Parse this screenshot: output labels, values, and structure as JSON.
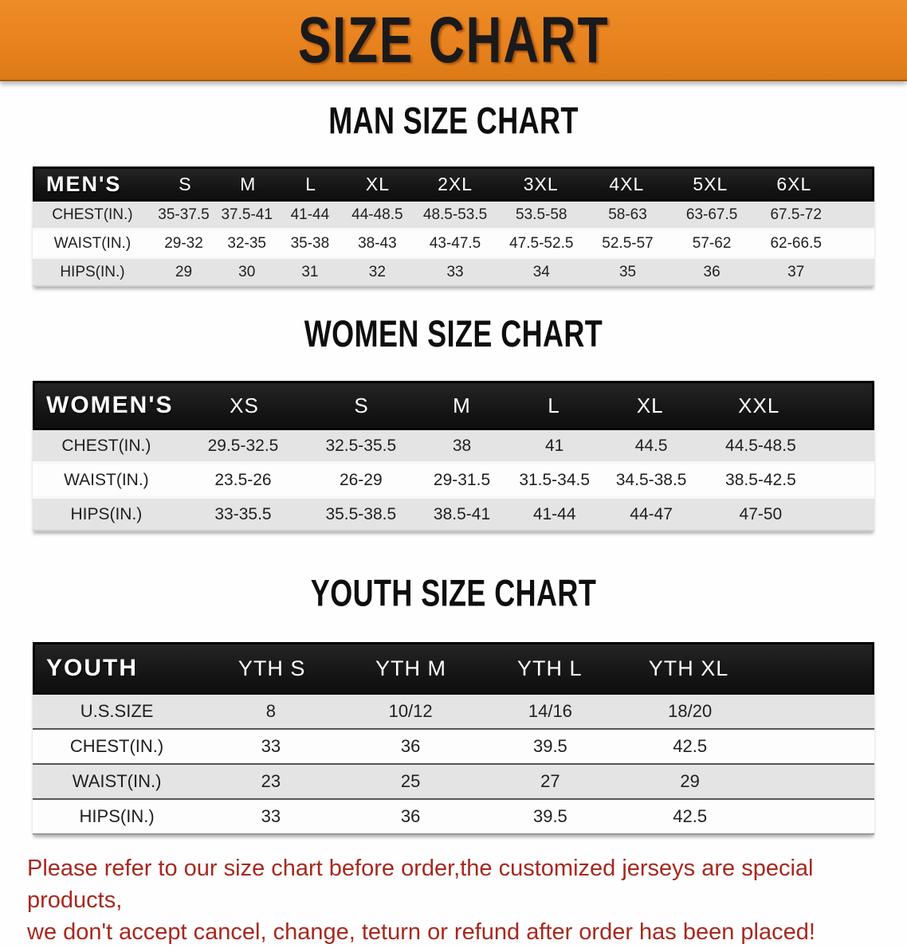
{
  "banner": {
    "title": "SIZE CHART"
  },
  "men": {
    "heading": "MAN SIZE CHART",
    "header_label": "MEN'S",
    "columns": [
      "S",
      "M",
      "L",
      "XL",
      "2XL",
      "3XL",
      "4XL",
      "5XL",
      "6XL"
    ],
    "rows": [
      {
        "label": "CHEST(IN.)",
        "values": [
          "35-37.5",
          "37.5-41",
          "41-44",
          "44-48.5",
          "48.5-53.5",
          "53.5-58",
          "58-63",
          "63-67.5",
          "67.5-72"
        ]
      },
      {
        "label": "WAIST(IN.)",
        "values": [
          "29-32",
          "32-35",
          "35-38",
          "38-43",
          "43-47.5",
          "47.5-52.5",
          "52.5-57",
          "57-62",
          "62-66.5"
        ]
      },
      {
        "label": "HIPS(IN.)",
        "values": [
          "29",
          "30",
          "31",
          "32",
          "33",
          "34",
          "35",
          "36",
          "37"
        ]
      }
    ]
  },
  "women": {
    "heading": "WOMEN SIZE CHART",
    "header_label": "WOMEN'S",
    "columns": [
      "XS",
      "S",
      "M",
      "L",
      "XL",
      "XXL"
    ],
    "rows": [
      {
        "label": "CHEST(IN.)",
        "values": [
          "29.5-32.5",
          "32.5-35.5",
          "38",
          "41",
          "44.5",
          "44.5-48.5"
        ]
      },
      {
        "label": "WAIST(IN.)",
        "values": [
          "23.5-26",
          "26-29",
          "29-31.5",
          "31.5-34.5",
          "34.5-38.5",
          "38.5-42.5"
        ]
      },
      {
        "label": "HIPS(IN.)",
        "values": [
          "33-35.5",
          "35.5-38.5",
          "38.5-41",
          "41-44",
          "44-47",
          "47-50"
        ]
      }
    ]
  },
  "youth": {
    "heading": "YOUTH SIZE CHART",
    "header_label": "YOUTH",
    "columns": [
      "YTH S",
      "YTH M",
      "YTH L",
      "YTH XL"
    ],
    "rows": [
      {
        "label": "U.S.SIZE",
        "values": [
          "8",
          "10/12",
          "14/16",
          "18/20"
        ]
      },
      {
        "label": "CHEST(IN.)",
        "values": [
          "33",
          "36",
          "39.5",
          "42.5"
        ]
      },
      {
        "label": "WAIST(IN.)",
        "values": [
          "23",
          "25",
          "27",
          "29"
        ]
      },
      {
        "label": "HIPS(IN.)",
        "values": [
          "33",
          "36",
          "39.5",
          "42.5"
        ]
      }
    ]
  },
  "disclaimer": {
    "line1": "Please refer to our size chart before order,the customized jerseys are special products,",
    "line2": "we don't accept cancel, change, teturn or refund after order has been placed!"
  },
  "colors": {
    "banner_orange": "#E8821E",
    "header_black": "#141414",
    "row_gray": "#E4E4E4",
    "disclaimer_red": "#A8281E"
  }
}
